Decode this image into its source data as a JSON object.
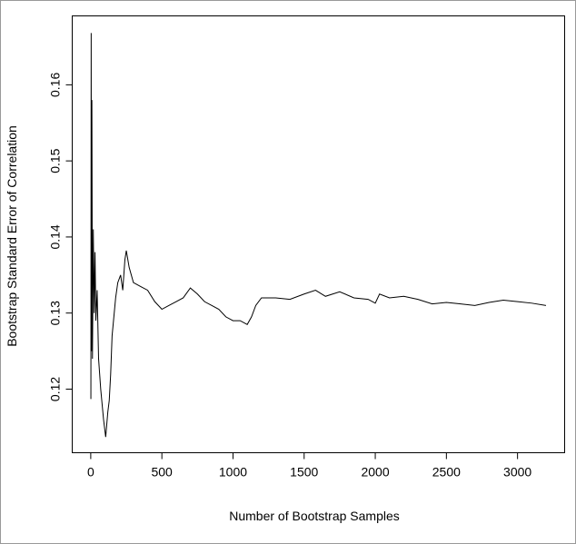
{
  "chart_data": {
    "type": "line",
    "xlabel": "Number of Bootstrap Samples",
    "ylabel": "Bootstrap Standard Error of Correlation",
    "x": [
      1,
      3,
      5,
      8,
      12,
      18,
      24,
      30,
      36,
      45,
      55,
      70,
      90,
      105,
      120,
      130,
      140,
      150,
      160,
      175,
      190,
      210,
      225,
      240,
      250,
      270,
      300,
      350,
      400,
      450,
      500,
      550,
      600,
      650,
      700,
      750,
      800,
      850,
      900,
      950,
      1000,
      1050,
      1100,
      1130,
      1160,
      1200,
      1300,
      1400,
      1500,
      1580,
      1650,
      1750,
      1850,
      1950,
      2000,
      2030,
      2100,
      2200,
      2300,
      2400,
      2500,
      2600,
      2700,
      2800,
      2900,
      3000,
      3100,
      3200
    ],
    "values": [
      0.1187,
      0.1668,
      0.125,
      0.158,
      0.124,
      0.141,
      0.13,
      0.138,
      0.129,
      0.133,
      0.124,
      0.12,
      0.116,
      0.1137,
      0.117,
      0.1185,
      0.122,
      0.127,
      0.129,
      0.132,
      0.134,
      0.135,
      0.133,
      0.137,
      0.1382,
      0.136,
      0.134,
      0.1335,
      0.133,
      0.1315,
      0.1305,
      0.131,
      0.1315,
      0.132,
      0.1333,
      0.1325,
      0.1315,
      0.131,
      0.1305,
      0.1295,
      0.129,
      0.129,
      0.1285,
      0.1295,
      0.131,
      0.132,
      0.132,
      0.1318,
      0.1325,
      0.133,
      0.1322,
      0.1328,
      0.132,
      0.1318,
      0.1313,
      0.1325,
      0.132,
      0.1322,
      0.1318,
      0.1312,
      0.1314,
      0.1312,
      0.131,
      0.1314,
      0.1317,
      0.1315,
      0.1313,
      0.131
    ],
    "color": "#000000",
    "xlim": [
      -127,
      3328
    ],
    "xticks": [
      0,
      500,
      1000,
      1500,
      2000,
      2500,
      3000
    ],
    "ylim": [
      0.1117,
      0.169
    ],
    "yticks": [
      0.12,
      0.13,
      0.14,
      0.15,
      0.16
    ],
    "grid": false
  }
}
